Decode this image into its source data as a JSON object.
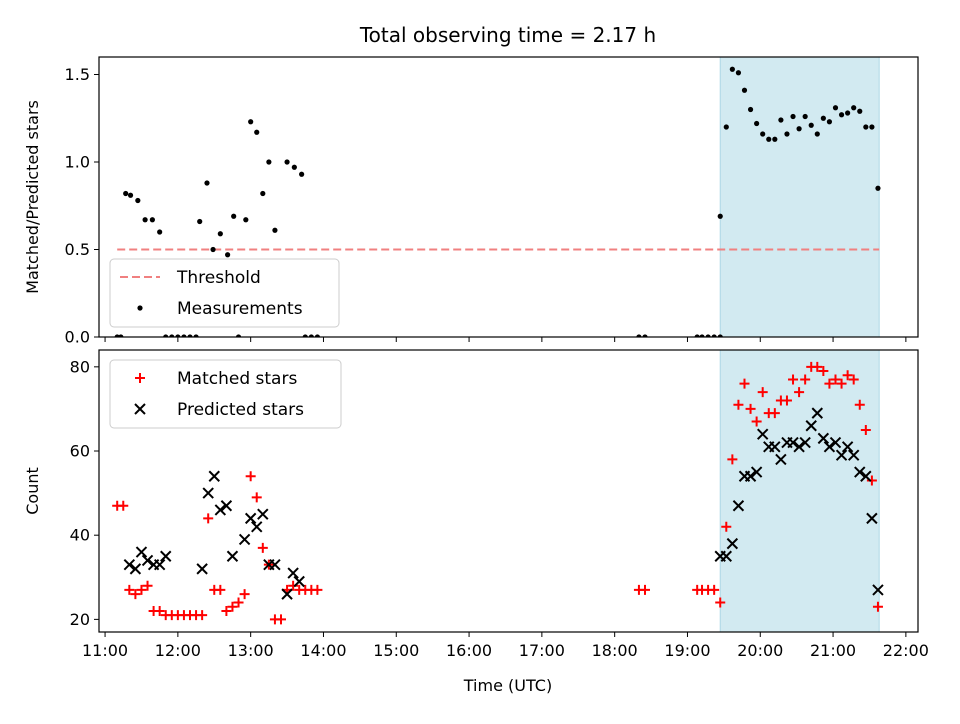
{
  "title": "Total observing time = 2.17 h",
  "xlabel": "Time (UTC)",
  "x_ticks": [
    "11:00",
    "12:00",
    "13:00",
    "14:00",
    "15:00",
    "16:00",
    "17:00",
    "18:00",
    "19:00",
    "20:00",
    "21:00",
    "22:00"
  ],
  "observing_window": {
    "start": "19:27",
    "end": "21:38",
    "color": "#add8e6"
  },
  "chart_data": [
    {
      "type": "scatter",
      "ylabel": "Matched/Predicted stars",
      "ylim": [
        0,
        1.6
      ],
      "y_ticks": [
        "0.0",
        "0.5",
        "1.0",
        "1.5"
      ],
      "legend": {
        "placement": "lower-left",
        "entries": [
          "Threshold",
          "Measurements"
        ]
      },
      "threshold": {
        "name": "Threshold",
        "value": 0.5,
        "x_start": "11:10",
        "x_end": "21:38",
        "color": "#f08080"
      },
      "series": [
        {
          "name": "Measurements",
          "color": "#000000",
          "marker": "dot",
          "points": [
            [
              "11:10",
              0
            ],
            [
              "11:13",
              0
            ],
            [
              "11:17",
              0.82
            ],
            [
              "11:21",
              0.81
            ],
            [
              "11:27",
              0.78
            ],
            [
              "11:33",
              0.67
            ],
            [
              "11:39",
              0.67
            ],
            [
              "11:45",
              0.6
            ],
            [
              "11:50",
              0
            ],
            [
              "11:55",
              0
            ],
            [
              "12:00",
              0
            ],
            [
              "12:05",
              0
            ],
            [
              "12:10",
              0
            ],
            [
              "12:15",
              0
            ],
            [
              "12:18",
              0.66
            ],
            [
              "12:24",
              0.88
            ],
            [
              "12:29",
              0.5
            ],
            [
              "12:35",
              0.59
            ],
            [
              "12:41",
              0.47
            ],
            [
              "12:46",
              0.69
            ],
            [
              "12:50",
              0
            ],
            [
              "12:56",
              0.67
            ],
            [
              "13:00",
              1.23
            ],
            [
              "13:05",
              1.17
            ],
            [
              "13:10",
              0.82
            ],
            [
              "13:15",
              1.0
            ],
            [
              "13:20",
              0.61
            ],
            [
              "13:30",
              1.0
            ],
            [
              "13:36",
              0.97
            ],
            [
              "13:42",
              0.93
            ],
            [
              "13:45",
              0
            ],
            [
              "13:50",
              0
            ],
            [
              "13:55",
              0
            ],
            [
              "18:20",
              0
            ],
            [
              "18:25",
              0
            ],
            [
              "19:08",
              0
            ],
            [
              "19:12",
              0
            ],
            [
              "19:17",
              0
            ],
            [
              "19:22",
              0
            ],
            [
              "19:27",
              0
            ],
            [
              "19:27",
              0.69
            ],
            [
              "19:32",
              1.2
            ],
            [
              "19:37",
              1.53
            ],
            [
              "19:42",
              1.51
            ],
            [
              "19:47",
              1.41
            ],
            [
              "19:52",
              1.3
            ],
            [
              "19:57",
              1.22
            ],
            [
              "20:02",
              1.16
            ],
            [
              "20:07",
              1.13
            ],
            [
              "20:12",
              1.13
            ],
            [
              "20:17",
              1.24
            ],
            [
              "20:22",
              1.16
            ],
            [
              "20:27",
              1.26
            ],
            [
              "20:32",
              1.19
            ],
            [
              "20:37",
              1.26
            ],
            [
              "20:42",
              1.21
            ],
            [
              "20:47",
              1.16
            ],
            [
              "20:52",
              1.25
            ],
            [
              "20:57",
              1.23
            ],
            [
              "21:02",
              1.31
            ],
            [
              "21:07",
              1.27
            ],
            [
              "21:12",
              1.28
            ],
            [
              "21:17",
              1.31
            ],
            [
              "21:22",
              1.29
            ],
            [
              "21:27",
              1.2
            ],
            [
              "21:32",
              1.2
            ],
            [
              "21:37",
              0.85
            ]
          ]
        }
      ]
    },
    {
      "type": "scatter",
      "ylabel": "Count",
      "ylim": [
        17,
        84
      ],
      "y_ticks": [
        "20",
        "40",
        "60",
        "80"
      ],
      "legend": {
        "placement": "top-left",
        "entries": [
          "Matched stars",
          "Predicted stars"
        ]
      },
      "series": [
        {
          "name": "Matched stars",
          "color": "#ff0000",
          "marker": "plus",
          "points": [
            [
              "11:10",
              47
            ],
            [
              "11:15",
              47
            ],
            [
              "11:20",
              27
            ],
            [
              "11:25",
              26
            ],
            [
              "11:30",
              27
            ],
            [
              "11:35",
              28
            ],
            [
              "11:40",
              22
            ],
            [
              "11:45",
              22
            ],
            [
              "11:50",
              21
            ],
            [
              "11:55",
              21
            ],
            [
              "12:00",
              21
            ],
            [
              "12:05",
              21
            ],
            [
              "12:10",
              21
            ],
            [
              "12:15",
              21
            ],
            [
              "12:20",
              21
            ],
            [
              "12:25",
              44
            ],
            [
              "12:30",
              27
            ],
            [
              "12:35",
              27
            ],
            [
              "12:40",
              22
            ],
            [
              "12:45",
              23
            ],
            [
              "12:50",
              24
            ],
            [
              "12:55",
              26
            ],
            [
              "13:00",
              54
            ],
            [
              "13:05",
              49
            ],
            [
              "13:10",
              37
            ],
            [
              "13:15",
              33
            ],
            [
              "13:20",
              20
            ],
            [
              "13:25",
              20
            ],
            [
              "13:30",
              27
            ],
            [
              "13:35",
              28
            ],
            [
              "13:40",
              27
            ],
            [
              "13:45",
              27
            ],
            [
              "13:50",
              27
            ],
            [
              "13:55",
              27
            ],
            [
              "18:20",
              27
            ],
            [
              "18:25",
              27
            ],
            [
              "19:08",
              27
            ],
            [
              "19:12",
              27
            ],
            [
              "19:17",
              27
            ],
            [
              "19:22",
              27
            ],
            [
              "19:27",
              24
            ],
            [
              "19:32",
              42
            ],
            [
              "19:37",
              58
            ],
            [
              "19:42",
              71
            ],
            [
              "19:47",
              76
            ],
            [
              "19:52",
              70
            ],
            [
              "19:57",
              67
            ],
            [
              "20:02",
              74
            ],
            [
              "20:07",
              69
            ],
            [
              "20:12",
              69
            ],
            [
              "20:17",
              72
            ],
            [
              "20:22",
              72
            ],
            [
              "20:27",
              77
            ],
            [
              "20:32",
              74
            ],
            [
              "20:37",
              77
            ],
            [
              "20:42",
              80
            ],
            [
              "20:47",
              80
            ],
            [
              "20:52",
              79
            ],
            [
              "20:57",
              76
            ],
            [
              "21:02",
              77
            ],
            [
              "21:07",
              76
            ],
            [
              "21:12",
              78
            ],
            [
              "21:17",
              77
            ],
            [
              "21:22",
              71
            ],
            [
              "21:27",
              65
            ],
            [
              "21:32",
              53
            ],
            [
              "21:37",
              23
            ]
          ]
        },
        {
          "name": "Predicted stars",
          "color": "#000000",
          "marker": "x",
          "points": [
            [
              "11:20",
              33
            ],
            [
              "11:25",
              32
            ],
            [
              "11:30",
              36
            ],
            [
              "11:35",
              34
            ],
            [
              "11:40",
              33
            ],
            [
              "11:45",
              33
            ],
            [
              "11:50",
              35
            ],
            [
              "12:20",
              32
            ],
            [
              "12:25",
              50
            ],
            [
              "12:30",
              54
            ],
            [
              "12:35",
              46
            ],
            [
              "12:40",
              47
            ],
            [
              "12:45",
              35
            ],
            [
              "12:55",
              39
            ],
            [
              "13:00",
              44
            ],
            [
              "13:05",
              42
            ],
            [
              "13:10",
              45
            ],
            [
              "13:15",
              33
            ],
            [
              "13:20",
              33
            ],
            [
              "13:30",
              26
            ],
            [
              "13:35",
              31
            ],
            [
              "13:40",
              29
            ],
            [
              "19:27",
              35
            ],
            [
              "19:32",
              35
            ],
            [
              "19:37",
              38
            ],
            [
              "19:42",
              47
            ],
            [
              "19:47",
              54
            ],
            [
              "19:52",
              54
            ],
            [
              "19:57",
              55
            ],
            [
              "20:02",
              64
            ],
            [
              "20:07",
              61
            ],
            [
              "20:12",
              61
            ],
            [
              "20:17",
              58
            ],
            [
              "20:22",
              62
            ],
            [
              "20:27",
              62
            ],
            [
              "20:32",
              61
            ],
            [
              "20:37",
              62
            ],
            [
              "20:42",
              66
            ],
            [
              "20:47",
              69
            ],
            [
              "20:52",
              63
            ],
            [
              "20:57",
              61
            ],
            [
              "21:02",
              62
            ],
            [
              "21:07",
              59
            ],
            [
              "21:12",
              61
            ],
            [
              "21:17",
              59
            ],
            [
              "21:22",
              55
            ],
            [
              "21:27",
              54
            ],
            [
              "21:32",
              44
            ],
            [
              "21:37",
              27
            ]
          ]
        }
      ]
    }
  ]
}
